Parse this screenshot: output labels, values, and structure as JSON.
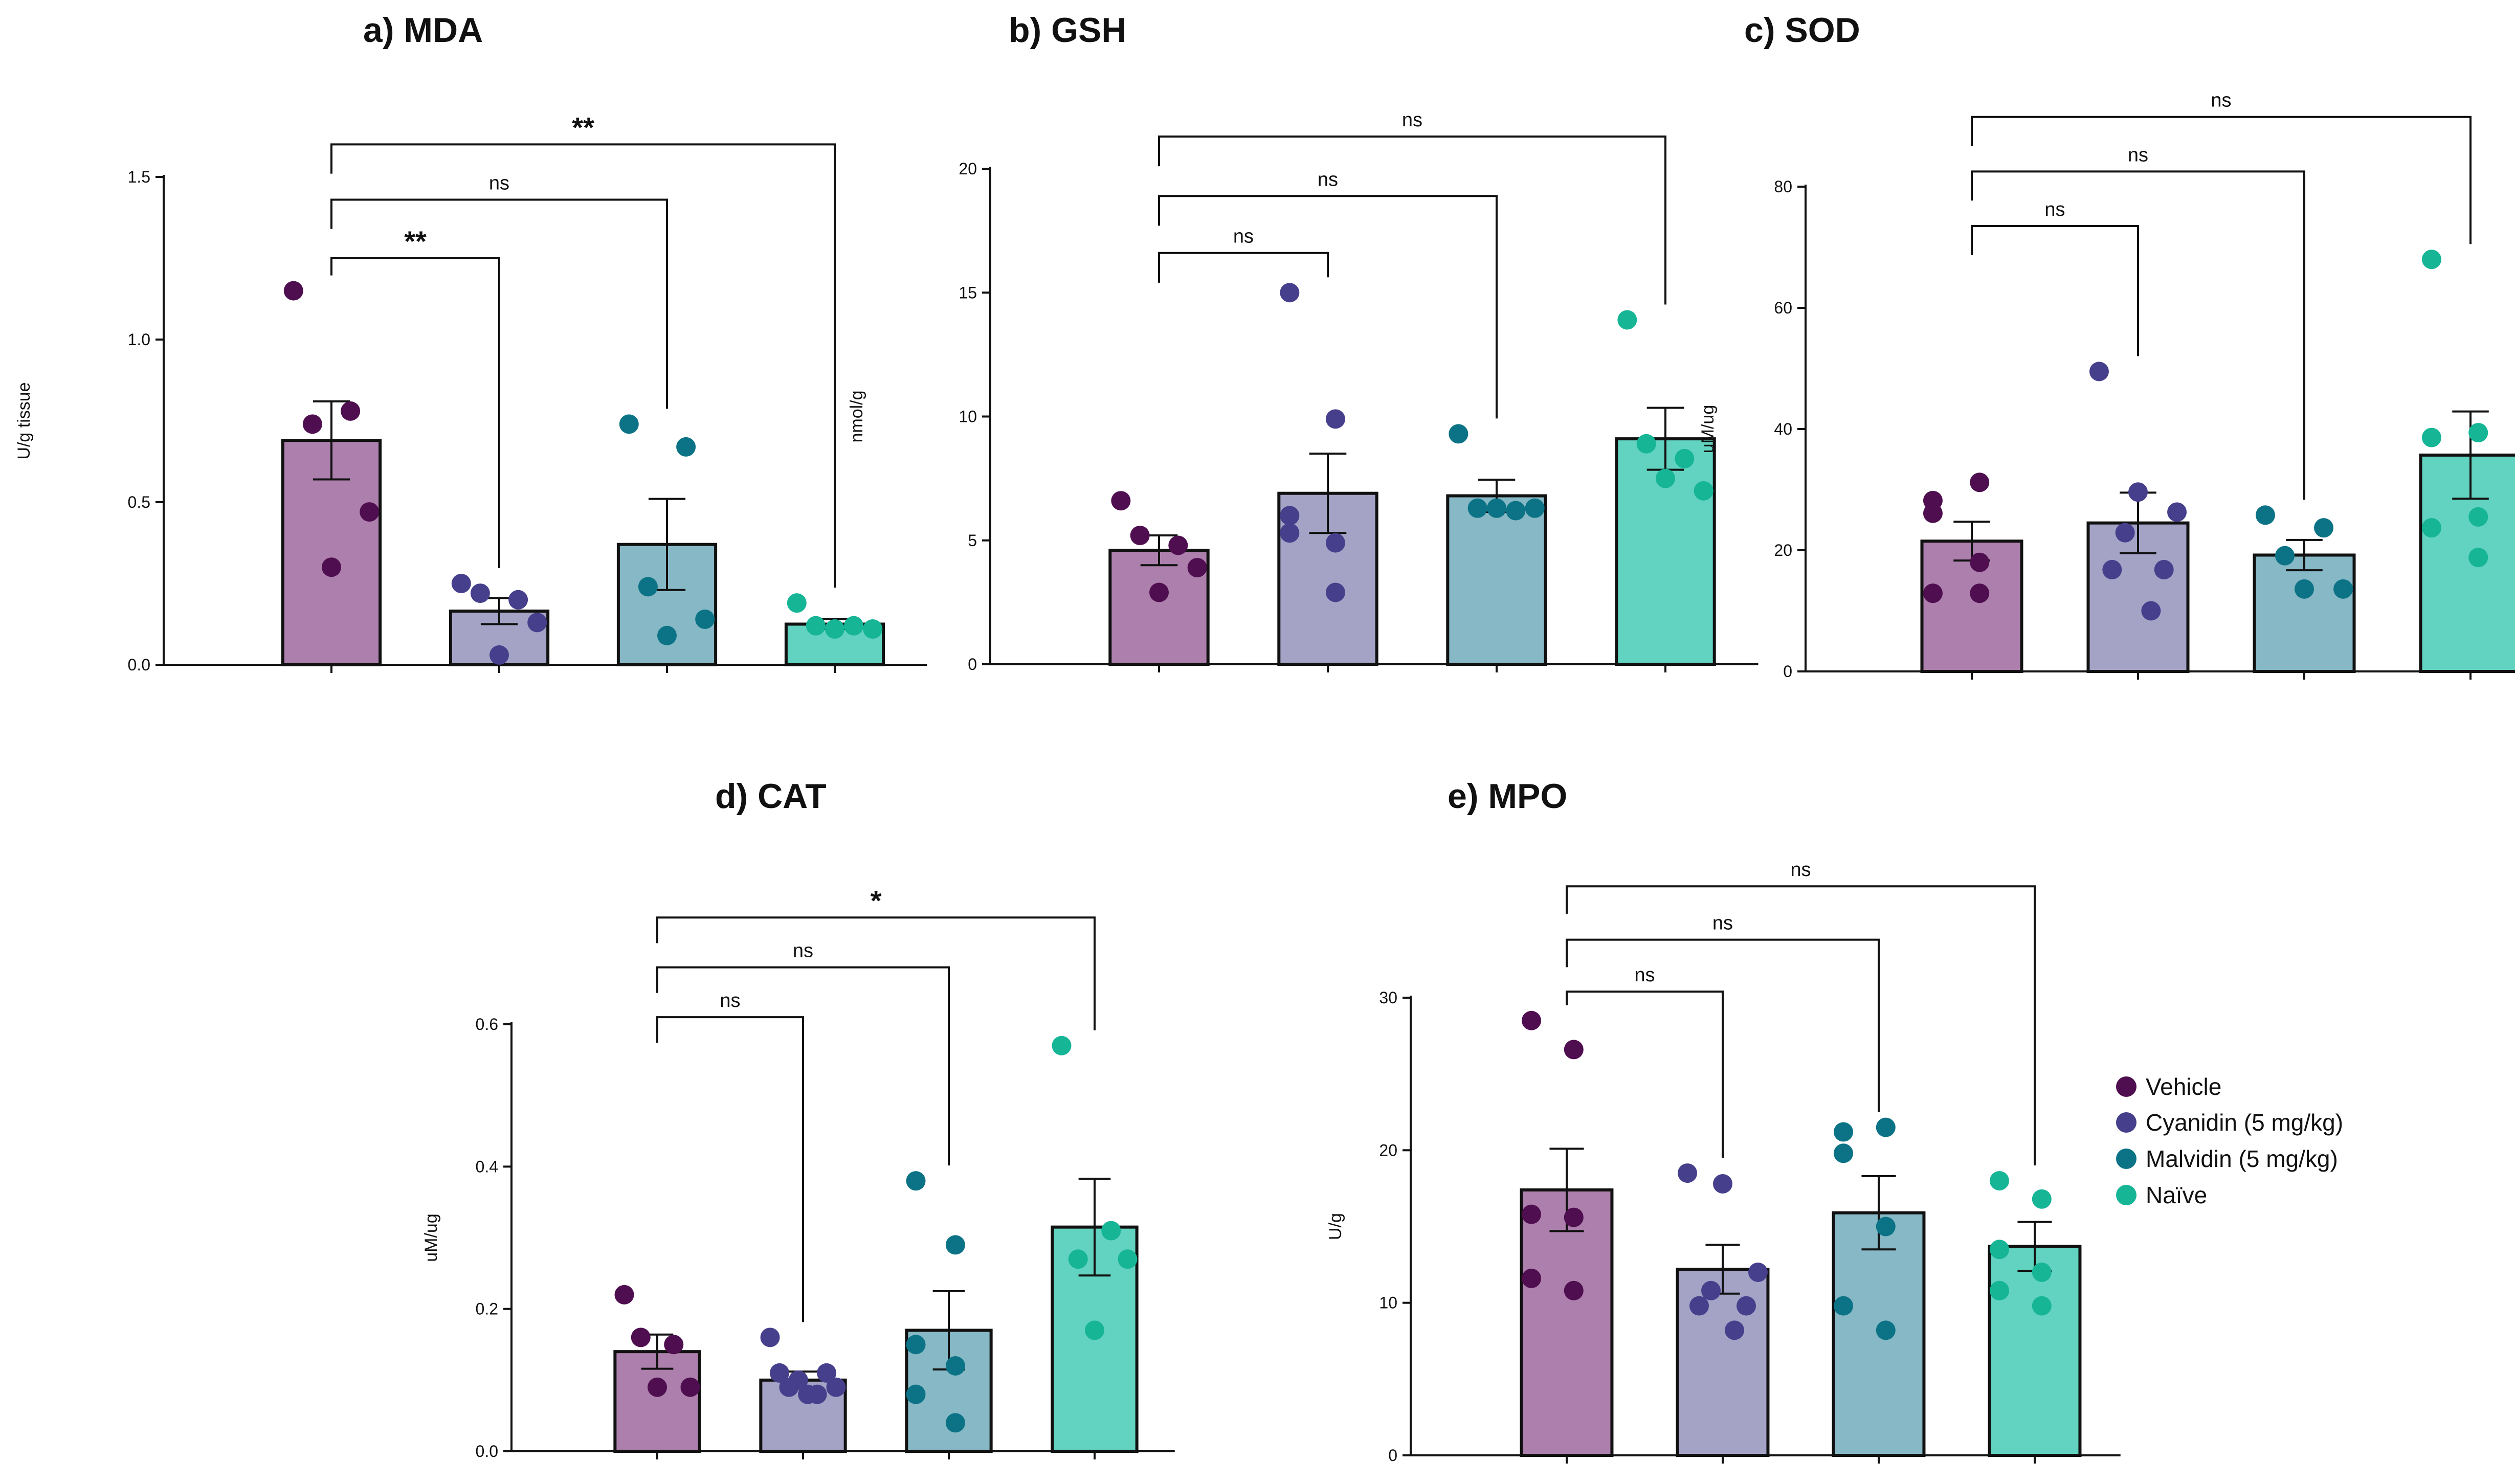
{
  "groups": [
    "Vehicle",
    "Cyanidin (5 mg/kg)",
    "Malvidin (5 mg/kg)",
    "Naïve"
  ],
  "colors": {
    "bar": [
      "#ad7fac",
      "#a4a3c6",
      "#86b8c5",
      "#62d3c0"
    ],
    "dot": [
      "#4e0e4f",
      "#453f8c",
      "#0b7385",
      "#16b596"
    ]
  },
  "legend": {
    "items": [
      {
        "label": "Vehicle"
      },
      {
        "label": "Cyanidin (5 mg/kg)"
      },
      {
        "label": "Malvidin (5 mg/kg)"
      },
      {
        "label": "Naïve"
      }
    ]
  },
  "chart_data": [
    {
      "type": "bar",
      "title": "a)  MDA",
      "ylabel": "U/g tissue",
      "ylim": [
        0,
        1.5
      ],
      "yticks": [
        "0.0",
        "0.5",
        "1.0",
        "1.5"
      ],
      "categories": [
        "Vehicle",
        "Cyanidin (5 mg/kg)",
        "Malvidin (5 mg/kg)",
        "Naïve"
      ],
      "values": [
        0.69,
        0.165,
        0.37,
        0.125
      ],
      "errors": [
        0.12,
        0.04,
        0.14,
        0.015
      ],
      "points": [
        [
          1.15,
          0.78,
          0.74,
          0.47,
          0.3
        ],
        [
          0.25,
          0.2,
          0.22,
          0.13,
          0.03
        ],
        [
          0.74,
          0.67,
          0.24,
          0.14,
          0.09
        ],
        [
          0.19,
          0.12,
          0.12,
          0.11,
          0.11
        ]
      ],
      "comparisons": [
        {
          "from": "Vehicle",
          "to": "Cyanidin (5 mg/kg)",
          "label": "**",
          "level": 1.25
        },
        {
          "from": "Vehicle",
          "to": "Malvidin (5 mg/kg)",
          "label": "ns",
          "level": 1.43
        },
        {
          "from": "Vehicle",
          "to": "Naïve",
          "label": "**",
          "level": 1.6
        }
      ]
    },
    {
      "type": "bar",
      "title": "b) GSH",
      "ylabel": "nmol/g",
      "ylim": [
        0,
        20
      ],
      "yticks": [
        "0",
        "5",
        "10",
        "15",
        "20"
      ],
      "categories": [
        "Vehicle",
        "Cyanidin (5 mg/kg)",
        "Malvidin (5 mg/kg)",
        "Naïve"
      ],
      "values": [
        4.6,
        6.9,
        6.8,
        9.1
      ],
      "errors": [
        0.6,
        1.6,
        0.65,
        1.25
      ],
      "points": [
        [
          6.6,
          4.8,
          5.2,
          3.9,
          2.9
        ],
        [
          15.0,
          9.9,
          5.3,
          4.9,
          6.0,
          2.9
        ],
        [
          9.3,
          6.2,
          6.3,
          6.3,
          6.3
        ],
        [
          13.9,
          8.3,
          8.9,
          7.0,
          7.5
        ]
      ],
      "comparisons": [
        {
          "from": "Vehicle",
          "to": "Cyanidin (5 mg/kg)",
          "label": "ns",
          "level": 16.6
        },
        {
          "from": "Vehicle",
          "to": "Malvidin (5 mg/kg)",
          "label": "ns",
          "level": 18.9
        },
        {
          "from": "Vehicle",
          "to": "Naïve",
          "label": "ns",
          "level": 21.3
        }
      ]
    },
    {
      "type": "bar",
      "title": "c) SOD",
      "ylabel": "uM/ug",
      "ylim": [
        0,
        80
      ],
      "yticks": [
        "0",
        "20",
        "40",
        "60",
        "80"
      ],
      "categories": [
        "Vehicle",
        "Cyanidin (5 mg/kg)",
        "Malvidin (5 mg/kg)",
        "Naïve"
      ],
      "values": [
        21.5,
        24.5,
        19.2,
        35.7
      ],
      "errors": [
        3.2,
        5.0,
        2.5,
        7.2
      ],
      "points": [
        [
          28.2,
          31.2,
          26.1,
          18.0,
          12.9,
          12.9
        ],
        [
          49.5,
          29.6,
          26.3,
          22.9,
          16.8,
          16.8,
          10.0
        ],
        [
          25.8,
          23.7,
          19.1,
          13.6,
          13.6
        ],
        [
          68.0,
          39.4,
          38.6,
          25.5,
          23.7,
          18.8
        ]
      ],
      "comparisons": [
        {
          "from": "Vehicle",
          "to": "Cyanidin (5 mg/kg)",
          "label": "ns",
          "level": 73.5
        },
        {
          "from": "Vehicle",
          "to": "Malvidin (5 mg/kg)",
          "label": "ns",
          "level": 82.5
        },
        {
          "from": "Vehicle",
          "to": "Naïve",
          "label": "ns",
          "level": 91.5
        }
      ]
    },
    {
      "type": "bar",
      "title": "d)  CAT",
      "ylabel": "uM/ug",
      "ylim": [
        0,
        0.6
      ],
      "yticks": [
        "0.0",
        "0.2",
        "0.4",
        "0.6"
      ],
      "categories": [
        "Vehicle",
        "Cyanidin (5 mg/kg)",
        "Malvidin (5 mg/kg)",
        "Naïve"
      ],
      "values": [
        0.14,
        0.1,
        0.17,
        0.315
      ],
      "errors": [
        0.024,
        0.012,
        0.055,
        0.068
      ],
      "points": [
        [
          0.22,
          0.15,
          0.16,
          0.09,
          0.09
        ],
        [
          0.16,
          0.1,
          0.11,
          0.11,
          0.08,
          0.09,
          0.09,
          0.08
        ],
        [
          0.38,
          0.29,
          0.15,
          0.12,
          0.08,
          0.04
        ],
        [
          0.57,
          0.31,
          0.27,
          0.27,
          0.17
        ]
      ],
      "comparisons": [
        {
          "from": "Vehicle",
          "to": "Cyanidin (5 mg/kg)",
          "label": "ns",
          "level": 0.61
        },
        {
          "from": "Vehicle",
          "to": "Malvidin (5 mg/kg)",
          "label": "ns",
          "level": 0.68
        },
        {
          "from": "Vehicle",
          "to": "Naïve",
          "label": "*",
          "level": 0.75
        }
      ]
    },
    {
      "type": "bar",
      "title": "e) MPO",
      "ylabel": "U/g",
      "ylim": [
        0,
        30
      ],
      "yticks": [
        "0",
        "10",
        "20",
        "30"
      ],
      "categories": [
        "Vehicle",
        "Cyanidin (5 mg/kg)",
        "Malvidin (5 mg/kg)",
        "Naïve"
      ],
      "values": [
        17.4,
        12.2,
        15.9,
        13.7
      ],
      "errors": [
        2.7,
        1.6,
        2.4,
        1.6
      ],
      "points": [
        [
          28.5,
          26.6,
          15.8,
          15.6,
          11.6,
          10.8
        ],
        [
          18.5,
          17.8,
          12.0,
          10.8,
          9.8,
          9.8,
          8.2
        ],
        [
          21.2,
          21.5,
          19.8,
          15.0,
          9.8,
          8.2
        ],
        [
          18.0,
          16.8,
          13.5,
          12.0,
          10.8,
          9.8
        ]
      ],
      "comparisons": [
        {
          "from": "Vehicle",
          "to": "Cyanidin (5 mg/kg)",
          "label": "ns",
          "level": 30.4
        },
        {
          "from": "Vehicle",
          "to": "Malvidin (5 mg/kg)",
          "label": "ns",
          "level": 33.8
        },
        {
          "from": "Vehicle",
          "to": "Naïve",
          "label": "ns",
          "level": 37.3
        }
      ]
    }
  ]
}
